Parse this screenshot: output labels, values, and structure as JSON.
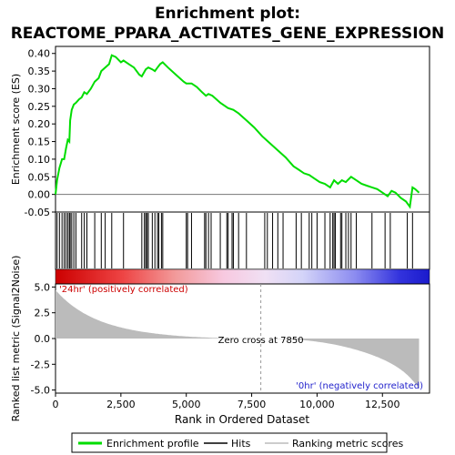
{
  "chart_data": {
    "type": "line",
    "title_line1": "Enrichment plot:",
    "title_line2": "REACTOME_PPARA_ACTIVATES_GENE_EXPRESSION",
    "es_panel": {
      "ylabel": "Enrichment score (ES)",
      "ylim": [
        -0.05,
        0.42
      ],
      "yticks": [
        "0.40",
        "0.35",
        "0.30",
        "0.25",
        "0.20",
        "0.15",
        "0.10",
        "0.05",
        "0.00",
        "-0.05"
      ],
      "ytick_values": [
        0.4,
        0.35,
        0.3,
        0.25,
        0.2,
        0.15,
        0.1,
        0.05,
        0.0,
        -0.05
      ],
      "line_color": "#00dd00",
      "points": [
        [
          0,
          0.0
        ],
        [
          60,
          0.04
        ],
        [
          150,
          0.075
        ],
        [
          250,
          0.1
        ],
        [
          330,
          0.1
        ],
        [
          400,
          0.13
        ],
        [
          470,
          0.155
        ],
        [
          530,
          0.15
        ],
        [
          560,
          0.21
        ],
        [
          620,
          0.24
        ],
        [
          700,
          0.255
        ],
        [
          780,
          0.26
        ],
        [
          900,
          0.27
        ],
        [
          1000,
          0.275
        ],
        [
          1100,
          0.29
        ],
        [
          1200,
          0.285
        ],
        [
          1350,
          0.3
        ],
        [
          1500,
          0.32
        ],
        [
          1650,
          0.33
        ],
        [
          1750,
          0.35
        ],
        [
          1900,
          0.36
        ],
        [
          2050,
          0.37
        ],
        [
          2150,
          0.395
        ],
        [
          2300,
          0.39
        ],
        [
          2500,
          0.375
        ],
        [
          2600,
          0.38
        ],
        [
          2800,
          0.37
        ],
        [
          3000,
          0.36
        ],
        [
          3200,
          0.34
        ],
        [
          3300,
          0.335
        ],
        [
          3450,
          0.355
        ],
        [
          3550,
          0.36
        ],
        [
          3700,
          0.355
        ],
        [
          3800,
          0.35
        ],
        [
          3900,
          0.36
        ],
        [
          4000,
          0.37
        ],
        [
          4100,
          0.375
        ],
        [
          4300,
          0.36
        ],
        [
          4600,
          0.34
        ],
        [
          4900,
          0.32
        ],
        [
          5000,
          0.315
        ],
        [
          5200,
          0.315
        ],
        [
          5400,
          0.305
        ],
        [
          5600,
          0.29
        ],
        [
          5750,
          0.28
        ],
        [
          5850,
          0.285
        ],
        [
          6000,
          0.28
        ],
        [
          6300,
          0.26
        ],
        [
          6600,
          0.245
        ],
        [
          6800,
          0.24
        ],
        [
          7000,
          0.23
        ],
        [
          7300,
          0.21
        ],
        [
          7600,
          0.19
        ],
        [
          7900,
          0.165
        ],
        [
          8200,
          0.145
        ],
        [
          8500,
          0.125
        ],
        [
          8800,
          0.105
        ],
        [
          9100,
          0.08
        ],
        [
          9300,
          0.07
        ],
        [
          9500,
          0.06
        ],
        [
          9700,
          0.055
        ],
        [
          9900,
          0.045
        ],
        [
          10100,
          0.035
        ],
        [
          10300,
          0.03
        ],
        [
          10500,
          0.02
        ],
        [
          10650,
          0.04
        ],
        [
          10800,
          0.03
        ],
        [
          10950,
          0.04
        ],
        [
          11100,
          0.035
        ],
        [
          11300,
          0.05
        ],
        [
          11500,
          0.04
        ],
        [
          11700,
          0.03
        ],
        [
          11900,
          0.025
        ],
        [
          12100,
          0.02
        ],
        [
          12300,
          0.015
        ],
        [
          12500,
          0.005
        ],
        [
          12700,
          -0.005
        ],
        [
          12850,
          0.01
        ],
        [
          13000,
          0.005
        ],
        [
          13200,
          -0.01
        ],
        [
          13400,
          -0.02
        ],
        [
          13550,
          -0.035
        ],
        [
          13650,
          0.02
        ],
        [
          13750,
          0.015
        ],
        [
          13900,
          0.005
        ]
      ]
    },
    "hits": [
      60,
      150,
      250,
      330,
      400,
      470,
      530,
      560,
      620,
      700,
      780,
      1000,
      1100,
      1200,
      1500,
      1750,
      1900,
      2150,
      2600,
      3300,
      3400,
      3450,
      3500,
      3550,
      3700,
      3800,
      3900,
      3950,
      4050,
      4100,
      5000,
      5050,
      5200,
      5700,
      5750,
      5850,
      5950,
      6300,
      6550,
      6600,
      6750,
      6800,
      7000,
      7300,
      8000,
      8100,
      8300,
      8500,
      8700,
      9200,
      9400,
      9700,
      9800,
      10000,
      10300,
      10500,
      10600,
      10650,
      10700,
      10900,
      10950,
      11100,
      11200,
      11300,
      11500,
      12100,
      12600,
      12800,
      13450,
      13650
    ],
    "rank_panel": {
      "ylabel": "Ranked list metric (Signal2Noise)",
      "ylim": [
        -5.3,
        5.3
      ],
      "yticks": [
        "5.0",
        "2.5",
        "0.0",
        "-2.5",
        "-5.0"
      ],
      "ytick_values": [
        5.0,
        2.5,
        0.0,
        -2.5,
        -5.0
      ],
      "pos_label": "'24hr' (positively correlated)",
      "neg_label": "'0hr' (negatively correlated)",
      "zero_cross_label": "Zero cross at 7850",
      "zero_cross": 7850,
      "metric_max": 4.7,
      "metric_min": -4.9
    },
    "xlabel": "Rank in Ordered Dataset",
    "xlim": [
      0,
      14300
    ],
    "xticks": [
      "0",
      "2,500",
      "5,000",
      "7,500",
      "10,000",
      "12,500"
    ],
    "xtick_values": [
      0,
      2500,
      5000,
      7500,
      10000,
      12500
    ],
    "n_genes": 13900,
    "legend": [
      {
        "label": "Enrichment profile",
        "color": "#00dd00"
      },
      {
        "label": "Hits",
        "color": "#000000"
      },
      {
        "label": "Ranking metric scores",
        "color": "#bbbbbb"
      }
    ]
  }
}
